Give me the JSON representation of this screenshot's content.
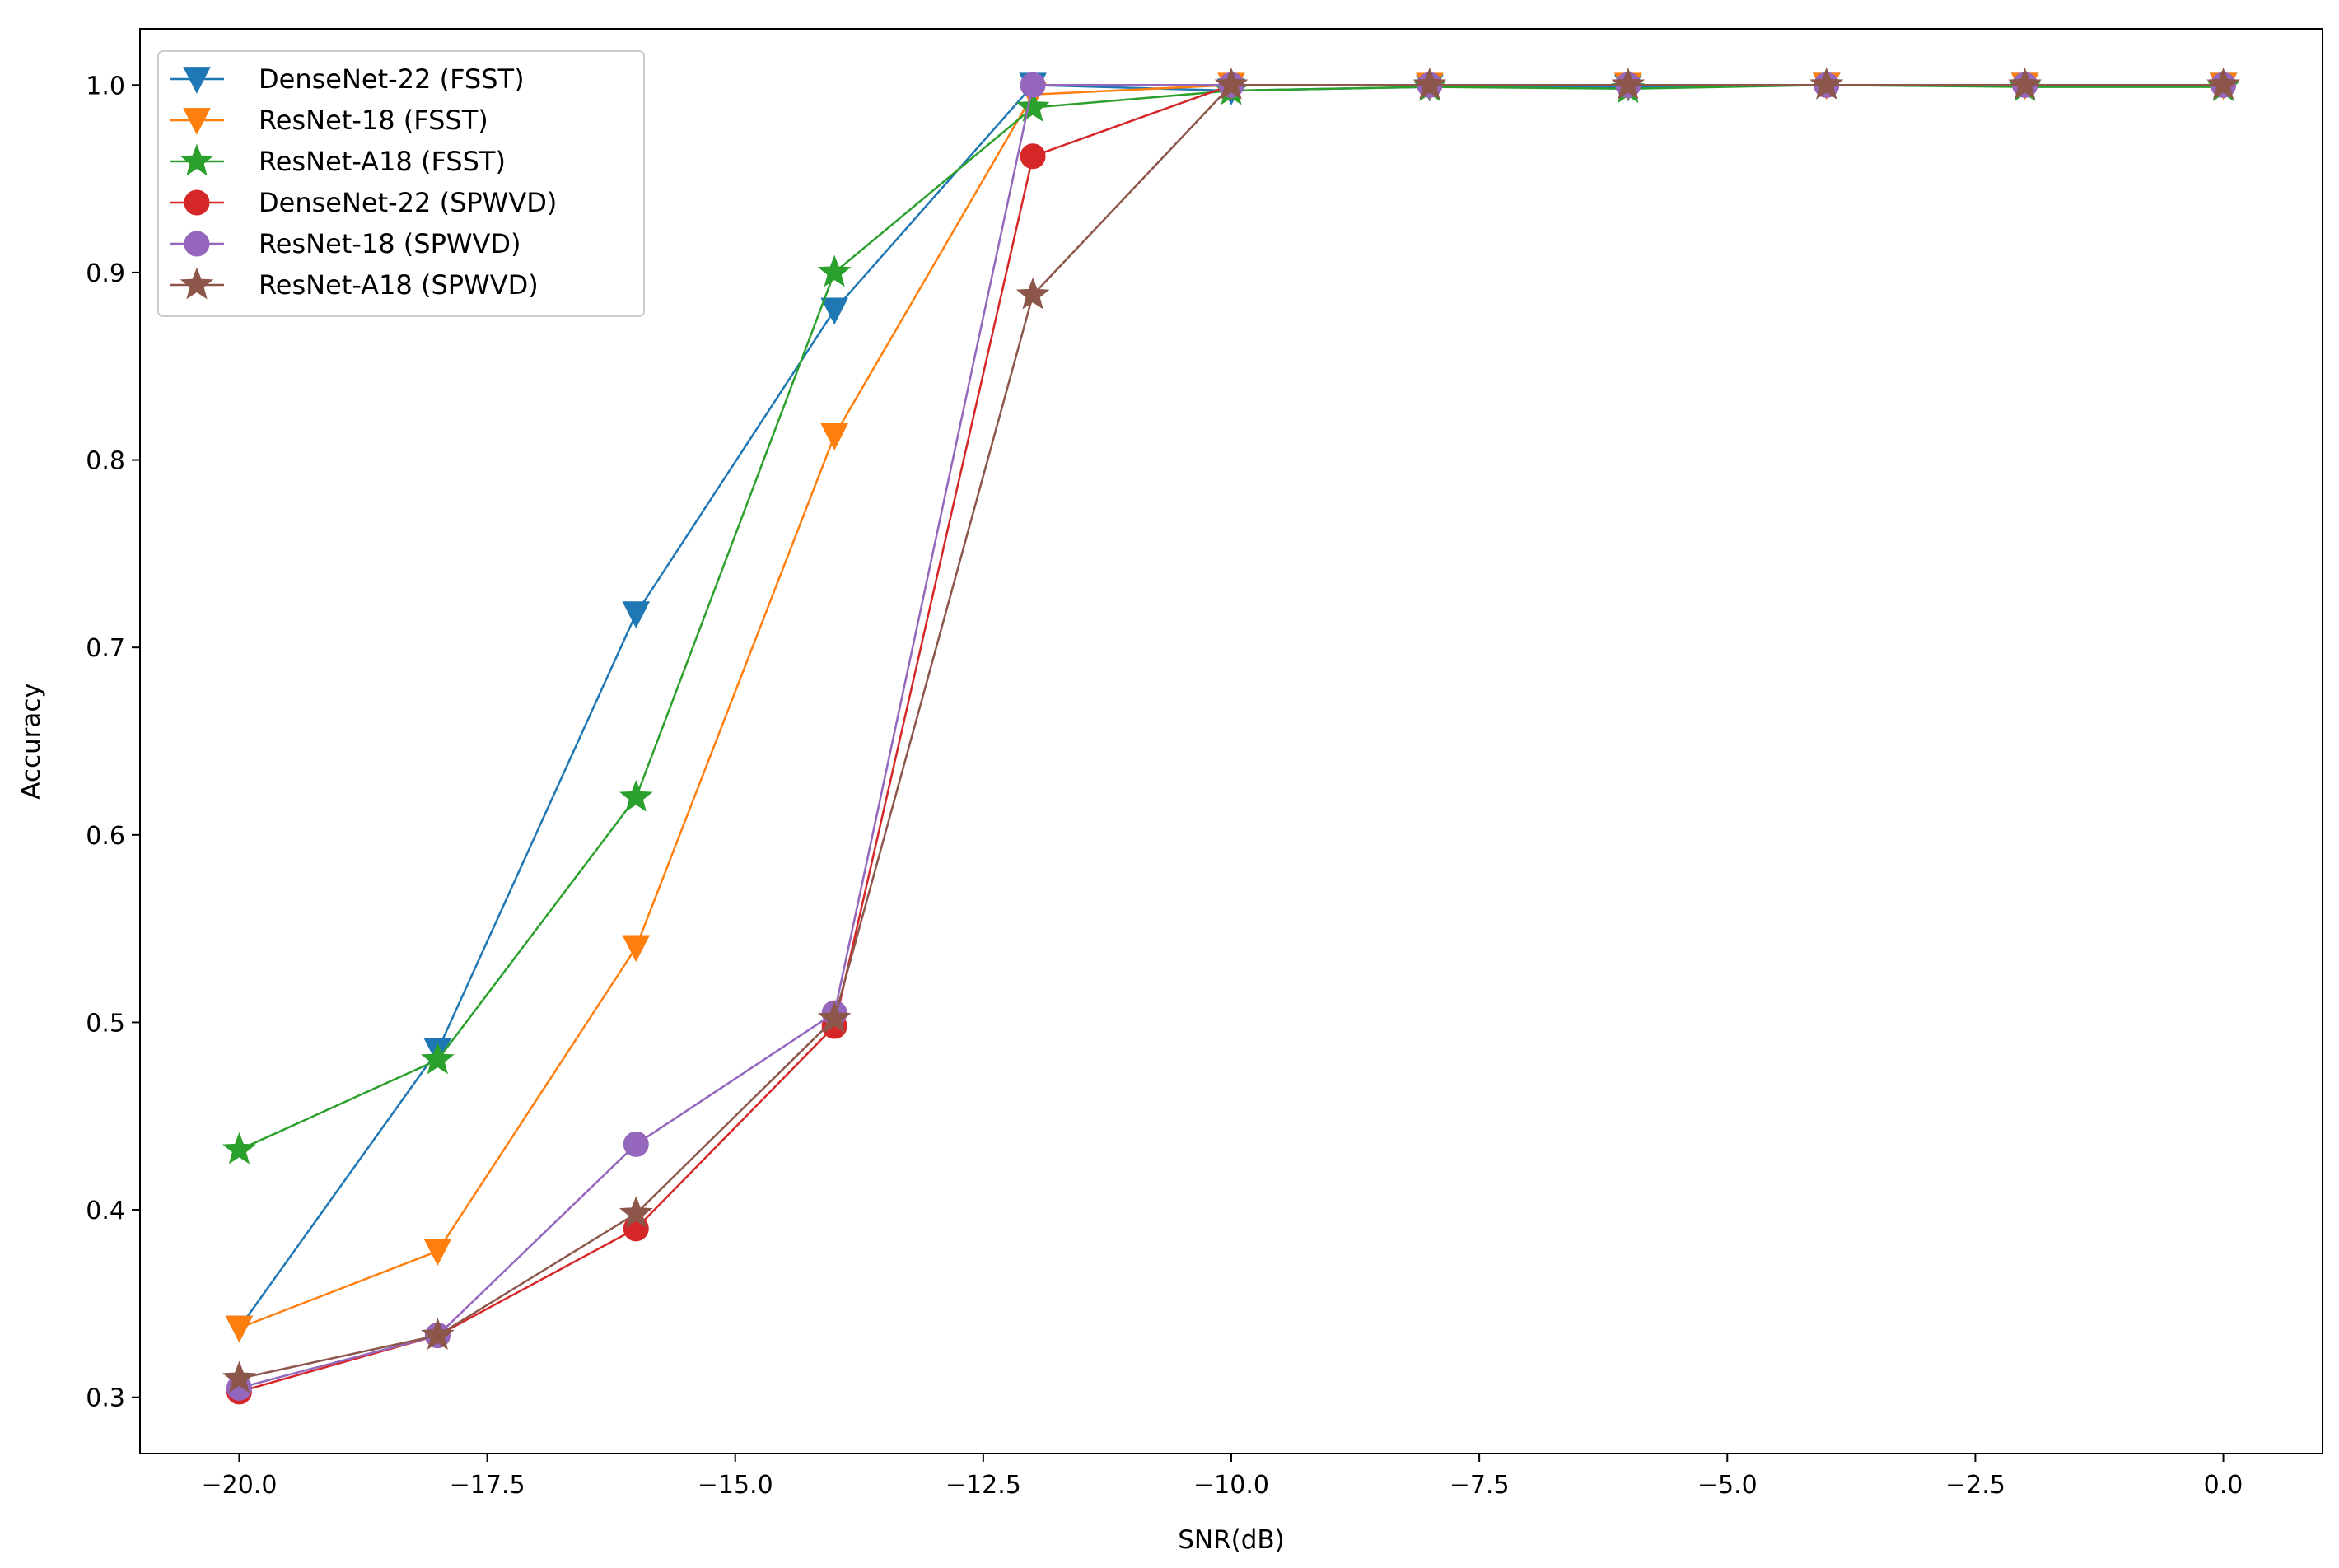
{
  "chart_data": {
    "type": "line",
    "title": "",
    "xlabel": "SNR(dB)",
    "ylabel": "Accuracy",
    "xlim": [
      -21.0,
      1.0
    ],
    "ylim": [
      0.27,
      1.03
    ],
    "xticks": [
      -20.0,
      -17.5,
      -15.0,
      -12.5,
      -10.0,
      -7.5,
      -5.0,
      -2.5,
      0.0
    ],
    "xtick_labels": [
      "−20.0",
      "−17.5",
      "−15.0",
      "−12.5",
      "−10.0",
      "−7.5",
      "−5.0",
      "−2.5",
      "0.0"
    ],
    "yticks": [
      0.3,
      0.4,
      0.5,
      0.6,
      0.7,
      0.8,
      0.9,
      1.0
    ],
    "ytick_labels": [
      "0.3",
      "0.4",
      "0.5",
      "0.6",
      "0.7",
      "0.8",
      "0.9",
      "1.0"
    ],
    "grid": false,
    "legend_position": "top-left",
    "x": [
      -20,
      -18,
      -16,
      -14,
      -12,
      -10,
      -8,
      -6,
      -4,
      -2,
      0
    ],
    "series": [
      {
        "name": "DenseNet-22 (FSST)",
        "color": "#1f77b4",
        "marker": "triangle-down",
        "values": [
          0.337,
          0.485,
          0.718,
          0.88,
          1.0,
          0.997,
          0.999,
          0.999,
          1.0,
          1.0,
          1.0
        ]
      },
      {
        "name": "ResNet-18 (FSST)",
        "color": "#ff7f0e",
        "marker": "triangle-down",
        "values": [
          0.337,
          0.378,
          0.54,
          0.813,
          0.995,
          1.0,
          1.0,
          1.0,
          1.0,
          1.0,
          1.0
        ]
      },
      {
        "name": "ResNet-A18 (FSST)",
        "color": "#2ca02c",
        "marker": "star",
        "values": [
          0.432,
          0.48,
          0.62,
          0.9,
          0.988,
          0.997,
          0.999,
          0.998,
          1.0,
          0.999,
          0.999
        ]
      },
      {
        "name": "DenseNet-22 (SPWVD)",
        "color": "#d62728",
        "marker": "circle",
        "values": [
          0.303,
          0.333,
          0.39,
          0.498,
          0.962,
          1.0,
          1.0,
          1.0,
          1.0,
          1.0,
          1.0
        ]
      },
      {
        "name": "ResNet-18 (SPWVD)",
        "color": "#9467bd",
        "marker": "circle",
        "values": [
          0.305,
          0.333,
          0.435,
          0.505,
          1.0,
          1.0,
          1.0,
          1.0,
          1.0,
          1.0,
          1.0
        ]
      },
      {
        "name": "ResNet-A18 (SPWVD)",
        "color": "#8c564b",
        "marker": "star",
        "values": [
          0.31,
          0.333,
          0.398,
          0.502,
          0.888,
          1.0,
          1.0,
          1.0,
          1.0,
          1.0,
          1.0
        ]
      }
    ]
  }
}
